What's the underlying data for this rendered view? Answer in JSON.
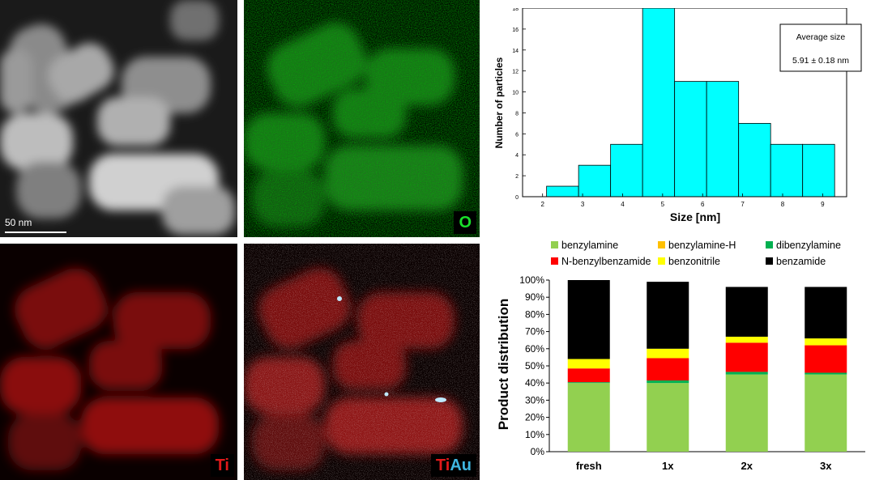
{
  "micrographs": {
    "haadf": {
      "scale_label": "50 nm"
    },
    "o_map": {
      "label": "O",
      "color": "#19e02a"
    },
    "ti_map": {
      "label": "Ti",
      "color": "#e0191a"
    },
    "tiau_map": {
      "label_ti": "Ti",
      "label_au": "Au",
      "color_ti": "#e0191a",
      "color_au": "#3fb6e0"
    }
  },
  "chart_data": [
    {
      "type": "bar",
      "subtype": "histogram",
      "bins": [
        [
          2.1,
          2.9
        ],
        [
          2.9,
          3.7
        ],
        [
          3.7,
          4.5
        ],
        [
          4.5,
          5.3
        ],
        [
          5.3,
          6.1
        ],
        [
          6.1,
          6.9
        ],
        [
          6.9,
          7.7
        ],
        [
          7.7,
          8.5
        ],
        [
          8.5,
          9.3
        ]
      ],
      "values": [
        1,
        3,
        5,
        18,
        11,
        11,
        7,
        5,
        5
      ],
      "xlabel": "Size [nm]",
      "ylabel": "Number of particles",
      "xlim": [
        1.5,
        9.6
      ],
      "ylim": [
        0,
        18
      ],
      "xticks": [
        2,
        3,
        4,
        5,
        6,
        7,
        8,
        9
      ],
      "yticks": [
        0,
        2,
        4,
        6,
        8,
        10,
        12,
        14,
        16,
        18
      ],
      "bar_color": "#00ffff",
      "annotation": {
        "title": "Average size",
        "value": "5.91 ± 0.18 nm"
      }
    },
    {
      "type": "bar",
      "subtype": "stacked",
      "categories": [
        "fresh",
        "1x",
        "2x",
        "3x"
      ],
      "series": [
        {
          "name": "benzylamine",
          "color": "#92d050",
          "values": [
            40,
            40,
            45,
            45
          ]
        },
        {
          "name": "dibenzylamine",
          "color": "#00b050",
          "values": [
            0.5,
            1.5,
            1.5,
            1
          ]
        },
        {
          "name": "N-benzylbenzamide",
          "color": "#ff0000",
          "values": [
            8,
            13,
            17,
            16
          ]
        },
        {
          "name": "benzylamine-H",
          "color": "#ffc000",
          "values": [
            0,
            0,
            0,
            0
          ]
        },
        {
          "name": "benzonitrile",
          "color": "#ffff00",
          "values": [
            5.5,
            5.5,
            3.5,
            4
          ]
        },
        {
          "name": "benzamide",
          "color": "#000000",
          "values": [
            46,
            39,
            29,
            30
          ]
        }
      ],
      "legend_order": [
        "benzylamine",
        "benzylamine-H",
        "dibenzylamine",
        "N-benzylbenzamide",
        "benzonitrile",
        "benzamide"
      ],
      "ylabel": "Product distribution",
      "ylim": [
        0,
        100
      ],
      "yticks": [
        "0%",
        "10%",
        "20%",
        "30%",
        "40%",
        "50%",
        "60%",
        "70%",
        "80%",
        "90%",
        "100%"
      ],
      "legend_position": "top"
    }
  ]
}
